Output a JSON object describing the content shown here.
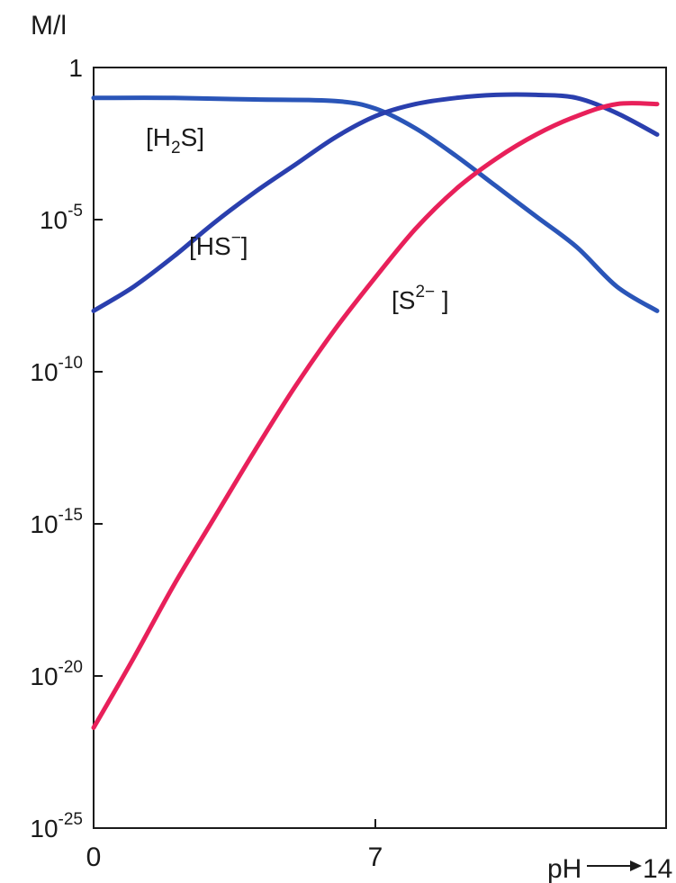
{
  "chart_data": {
    "type": "line",
    "ylabel": "M/l",
    "xlabel": "pH",
    "x_tick_labels": [
      "0",
      "7"
    ],
    "x_axis_end_label": "14",
    "y_tick_labels": [
      {
        "base": "1",
        "exp": ""
      },
      {
        "base": "10",
        "exp": "-5"
      },
      {
        "base": "10",
        "exp": "-10"
      },
      {
        "base": "10",
        "exp": "-15"
      },
      {
        "base": "10",
        "exp": "-20"
      },
      {
        "base": "10",
        "exp": "-25"
      }
    ],
    "y_ticks_log10": [
      0,
      -5,
      -10,
      -15,
      -20,
      -25
    ],
    "x_ticks": [
      0,
      7,
      14
    ],
    "xlim": [
      0,
      14
    ],
    "ylim_log10": [
      -25,
      0
    ],
    "yscale": "log",
    "series": [
      {
        "name": "[H2S]",
        "label_main": "[H",
        "label_sub": "2",
        "label_tail": "S]",
        "color": "#2a55b8",
        "x": [
          0,
          2,
          4,
          6,
          7,
          8,
          9,
          10,
          11,
          12,
          13,
          14
        ],
        "log10": [
          -1.0,
          -1.0,
          -1.05,
          -1.1,
          -1.35,
          -2.0,
          -2.9,
          -3.9,
          -4.9,
          -5.9,
          -7.2,
          -8.0
        ]
      },
      {
        "name": "[HS⁻]",
        "label_main": "[HS",
        "label_sup": "−",
        "label_tail": "]",
        "color": "#2a3fae",
        "x": [
          0,
          1,
          2,
          3,
          4,
          5,
          6,
          7,
          8,
          9,
          10,
          11,
          12,
          13,
          14
        ],
        "log10": [
          -8.0,
          -7.2,
          -6.2,
          -5.1,
          -4.1,
          -3.2,
          -2.3,
          -1.6,
          -1.2,
          -1.0,
          -0.9,
          -0.9,
          -1.0,
          -1.5,
          -2.2
        ]
      },
      {
        "name": "[S²⁻]",
        "label_main": "[S",
        "label_sup": "2−",
        "label_tail": " ]",
        "color": "#e8205a",
        "x": [
          0,
          1,
          2,
          3,
          4,
          5,
          6,
          7,
          8,
          9,
          10,
          11,
          12,
          13,
          14
        ],
        "log10": [
          -21.7,
          -19.4,
          -17.0,
          -14.8,
          -12.6,
          -10.5,
          -8.6,
          -6.9,
          -5.3,
          -4.0,
          -3.0,
          -2.2,
          -1.6,
          -1.2,
          -1.2
        ]
      }
    ],
    "grid": false,
    "legend": "none",
    "colors": {
      "axis": "#1a1a1a",
      "h2s": "#2a55b8",
      "hs": "#2a3fae",
      "s2": "#e8205a"
    }
  }
}
